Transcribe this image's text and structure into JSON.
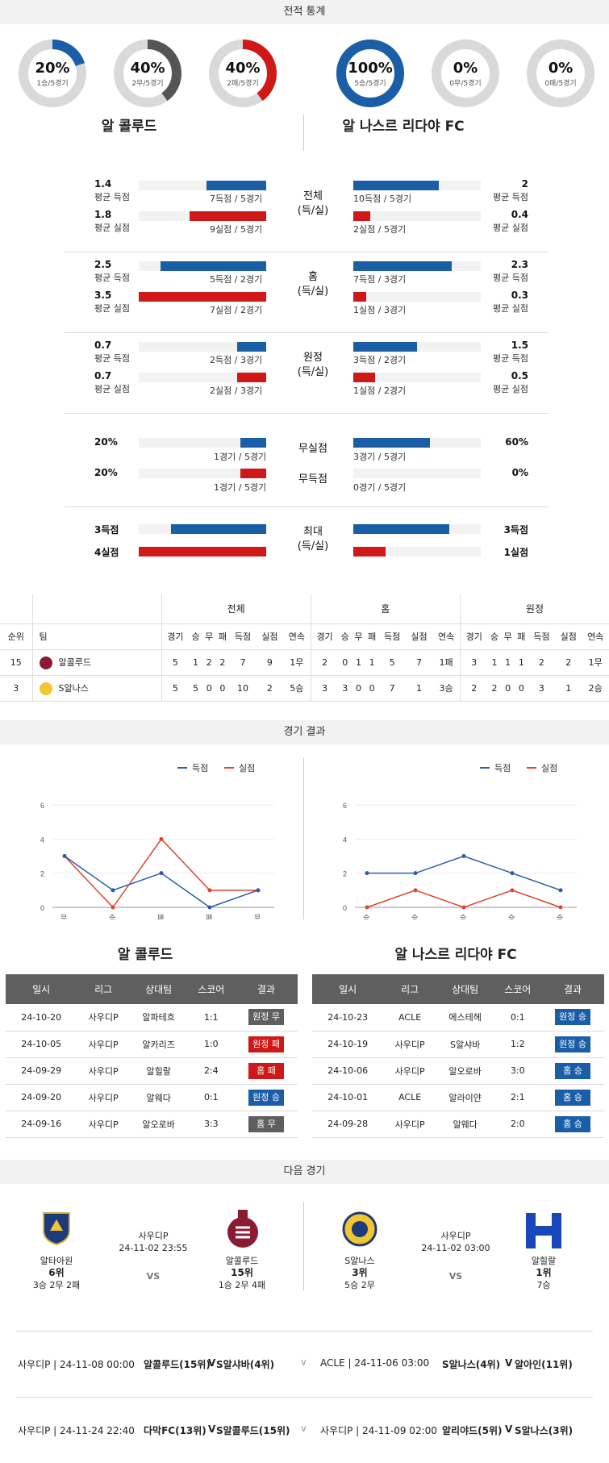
{
  "sections": {
    "stats": "전적 통계",
    "results": "경기 결과",
    "next": "다음 경기"
  },
  "teams": {
    "home": "알 콜루드",
    "away": "알 나스르 리다야 FC"
  },
  "donuts": [
    {
      "pct": "20%",
      "sub": "1승/5경기",
      "color": "#1a5ea8",
      "value": 0.2
    },
    {
      "pct": "40%",
      "sub": "2무/5경기",
      "color": "#555555",
      "value": 0.4
    },
    {
      "pct": "40%",
      "sub": "2패/5경기",
      "color": "#d01818",
      "value": 0.4
    },
    {
      "pct": "100%",
      "sub": "5승/5경기",
      "color": "#1a5ea8",
      "value": 1.0
    },
    {
      "pct": "0%",
      "sub": "0무/5경기",
      "color": "#555555",
      "value": 0
    },
    {
      "pct": "0%",
      "sub": "0패/5경기",
      "color": "#d01818",
      "value": 0
    }
  ],
  "stat_groups": [
    {
      "cat": "전체",
      "cat2": "(득/실)",
      "left": [
        {
          "val": "1.4",
          "lbl": "평균 득점",
          "cnt": "7득점 / 5경기",
          "frac": 0.47,
          "color": "blue"
        },
        {
          "val": "1.8",
          "lbl": "평균 실점",
          "cnt": "9실점 / 5경기",
          "frac": 0.6,
          "color": "red"
        }
      ],
      "right": [
        {
          "val": "2",
          "lbl": "평균 득점",
          "cnt": "10득점 / 5경기",
          "frac": 0.67,
          "color": "blue"
        },
        {
          "val": "0.4",
          "lbl": "평균 실점",
          "cnt": "2실점 / 5경기",
          "frac": 0.13,
          "color": "red"
        }
      ]
    },
    {
      "cat": "홈",
      "cat2": "(득/실)",
      "left": [
        {
          "val": "2.5",
          "lbl": "평균 득점",
          "cnt": "5득점 / 2경기",
          "frac": 0.83,
          "color": "blue"
        },
        {
          "val": "3.5",
          "lbl": "평균 실점",
          "cnt": "7실점 / 2경기",
          "frac": 1.0,
          "color": "red"
        }
      ],
      "right": [
        {
          "val": "2.3",
          "lbl": "평균 득점",
          "cnt": "7득점 / 3경기",
          "frac": 0.77,
          "color": "blue"
        },
        {
          "val": "0.3",
          "lbl": "평균 실점",
          "cnt": "1실점 / 3경기",
          "frac": 0.1,
          "color": "red"
        }
      ]
    },
    {
      "cat": "원정",
      "cat2": "(득/실)",
      "left": [
        {
          "val": "0.7",
          "lbl": "평균 득점",
          "cnt": "2득점 / 3경기",
          "frac": 0.23,
          "color": "blue"
        },
        {
          "val": "0.7",
          "lbl": "평균 실점",
          "cnt": "2실점 / 3경기",
          "frac": 0.23,
          "color": "red"
        }
      ],
      "right": [
        {
          "val": "1.5",
          "lbl": "평균 득점",
          "cnt": "3득점 / 2경기",
          "frac": 0.5,
          "color": "blue"
        },
        {
          "val": "0.5",
          "lbl": "평균 실점",
          "cnt": "1실점 / 2경기",
          "frac": 0.17,
          "color": "red"
        }
      ]
    }
  ],
  "clean": {
    "rows": [
      {
        "cat": "무실점",
        "lval": "20%",
        "lcnt": "1경기 / 5경기",
        "lfrac": 0.2,
        "rval": "60%",
        "rcnt": "3경기 / 5경기",
        "rfrac": 0.6,
        "color": "blue"
      },
      {
        "cat": "무득점",
        "lval": "20%",
        "lcnt": "1경기 / 5경기",
        "lfrac": 0.2,
        "rval": "0%",
        "rcnt": "0경기 / 5경기",
        "rfrac": 0,
        "color": "red"
      }
    ]
  },
  "max": {
    "cat": "최대",
    "cat2": "(득/실)",
    "left": [
      {
        "val": "3득점",
        "frac": 0.75,
        "color": "blue"
      },
      {
        "val": "4실점",
        "frac": 1.0,
        "color": "red"
      }
    ],
    "right": [
      {
        "val": "3득점",
        "frac": 0.75,
        "color": "blue"
      },
      {
        "val": "1실점",
        "frac": 0.25,
        "color": "red"
      }
    ]
  },
  "standings": {
    "groups": [
      "전체",
      "홈",
      "원정"
    ],
    "cols": [
      "순위",
      "팀",
      "경기",
      "승",
      "무",
      "패",
      "득점",
      "실점",
      "연속",
      "경기",
      "승",
      "무",
      "패",
      "득점",
      "실점",
      "연속",
      "경기",
      "승",
      "무",
      "패",
      "득점",
      "실점",
      "연속"
    ],
    "rows": [
      {
        "rank": "15",
        "team": "알콜루드",
        "cells": [
          "5",
          "1",
          "2",
          "2",
          "7",
          "9",
          "1무",
          "2",
          "0",
          "1",
          "1",
          "5",
          "7",
          "1패",
          "3",
          "1",
          "1",
          "1",
          "2",
          "2",
          "1무"
        ]
      },
      {
        "rank": "3",
        "team": "S알나스",
        "cells": [
          "5",
          "5",
          "0",
          "0",
          "10",
          "2",
          "5승",
          "3",
          "3",
          "0",
          "0",
          "7",
          "1",
          "3승",
          "2",
          "2",
          "0",
          "0",
          "3",
          "1",
          "2승"
        ]
      }
    ]
  },
  "charts": {
    "legend": [
      "득점",
      "실점"
    ],
    "yticks": [
      "6",
      "4",
      "2",
      "0"
    ],
    "left": {
      "x": [
        "무",
        "승",
        "패",
        "패",
        "무"
      ],
      "scored": [
        3,
        1,
        2,
        0,
        1
      ],
      "conceded": [
        3,
        0,
        4,
        1,
        1
      ]
    },
    "right": {
      "x": [
        "승",
        "승",
        "승",
        "승",
        "승"
      ],
      "scored": [
        2,
        2,
        3,
        2,
        1
      ],
      "conceded": [
        0,
        1,
        0,
        1,
        0
      ]
    }
  },
  "chart_data": [
    {
      "type": "line",
      "title": "",
      "categories": [
        "무",
        "승",
        "패",
        "패",
        "무"
      ],
      "series": [
        {
          "name": "득점",
          "values": [
            3,
            1,
            2,
            0,
            1
          ]
        },
        {
          "name": "실점",
          "values": [
            3,
            0,
            4,
            1,
            1
          ]
        }
      ],
      "ylim": [
        0,
        6
      ],
      "legend": "top-right"
    },
    {
      "type": "line",
      "title": "",
      "categories": [
        "승",
        "승",
        "승",
        "승",
        "승"
      ],
      "series": [
        {
          "name": "득점",
          "values": [
            2,
            2,
            3,
            2,
            1
          ]
        },
        {
          "name": "실점",
          "values": [
            0,
            1,
            0,
            1,
            0
          ]
        }
      ],
      "ylim": [
        0,
        6
      ],
      "legend": "top-right"
    }
  ],
  "results": {
    "headers": [
      "일시",
      "리그",
      "상대팀",
      "스코어",
      "결과"
    ],
    "left": [
      [
        "24-10-20",
        "사우디P",
        "알파테흐",
        "1:1",
        "원정 무",
        "bd"
      ],
      [
        "24-10-05",
        "사우디P",
        "알카리즈",
        "1:0",
        "원정 패",
        "bl"
      ],
      [
        "24-09-29",
        "사우디P",
        "알힐랄",
        "2:4",
        "홈 패",
        "bl"
      ],
      [
        "24-09-20",
        "사우디P",
        "알웨다",
        "0:1",
        "원정 승",
        "bw"
      ],
      [
        "24-09-16",
        "사우디P",
        "알오로바",
        "3:3",
        "홈 무",
        "bd"
      ]
    ],
    "right": [
      [
        "24-10-23",
        "ACLE",
        "에스테헤",
        "0:1",
        "원정 승",
        "bw"
      ],
      [
        "24-10-19",
        "사우디P",
        "S알샤바",
        "1:2",
        "원정 승",
        "bw"
      ],
      [
        "24-10-06",
        "사우디P",
        "알오로바",
        "3:0",
        "홈 승",
        "bw"
      ],
      [
        "24-10-01",
        "ACLE",
        "알라이얀",
        "2:1",
        "홈 승",
        "bw"
      ],
      [
        "24-09-28",
        "사우디P",
        "알웨다",
        "2:0",
        "홈 승",
        "bw"
      ]
    ]
  },
  "next": {
    "m1": {
      "league": "사우디P",
      "time": "24-11-02 23:55",
      "vs": "VS",
      "h": {
        "name": "알타아원",
        "rank": "6위",
        "rec": "3승 2무 2패"
      },
      "a": {
        "name": "알콜루드",
        "rank": "15위",
        "rec": "1승 2무 4패"
      }
    },
    "m2": {
      "league": "사우디P",
      "time": "24-11-02 03:00",
      "vs": "VS",
      "h": {
        "name": "S알나스",
        "rank": "3위",
        "rec": "5승 2무"
      },
      "a": {
        "name": "알힐랄",
        "rank": "1위",
        "rec": "7승"
      }
    }
  },
  "footer": [
    {
      "l": "사우디P | 24-11-08 00:00",
      "lt": "알콜루드(15위)",
      "lv": "V",
      "lo": "S알샤바(4위)",
      "r": "ACLE | 24-11-06 03:00",
      "rt": "S알나스(4위)",
      "rv": "V",
      "ro": "알아인(11위)"
    },
    {
      "l": "사우디P | 24-11-24 22:40",
      "lt": "다막FC(13위)",
      "lv": "V",
      "lo": "S알콜루드(15위)",
      "r": "사우디P | 24-11-09 02:00",
      "rt": "알리야드(5위)",
      "rv": "V",
      "ro": "S알나스(3위)"
    }
  ]
}
